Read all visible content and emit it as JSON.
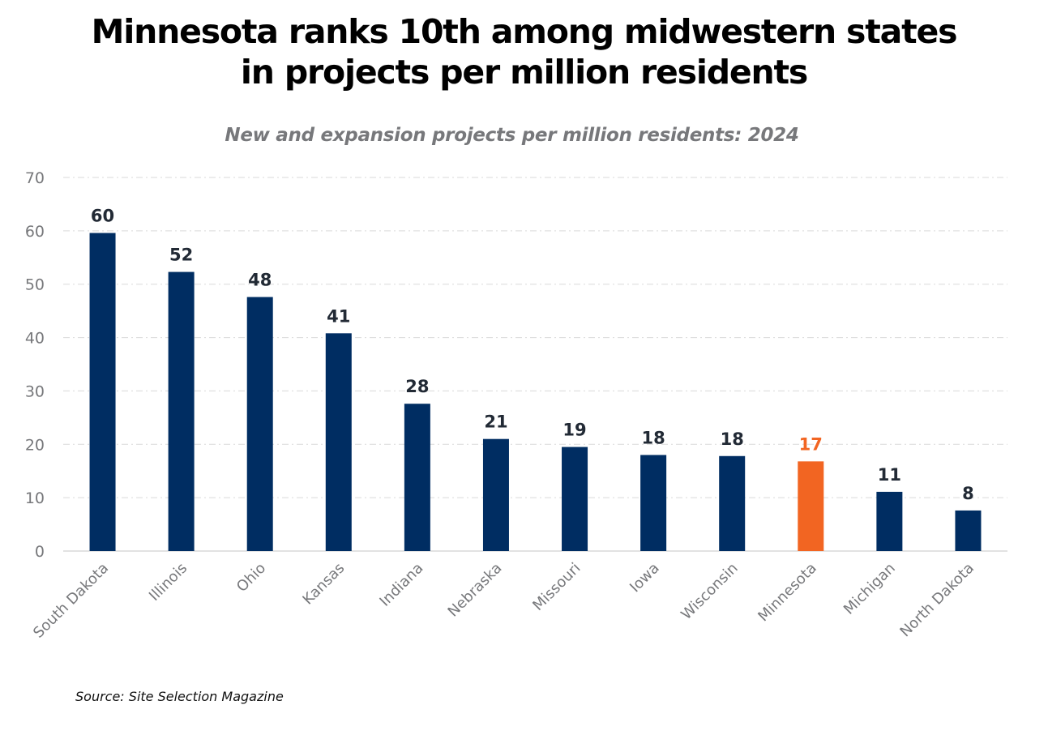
{
  "chart_data": {
    "type": "bar",
    "title": "Minnesota ranks 10th among midwestern states in projects per million residents",
    "title_lines": [
      "Minnesota ranks 10th among midwestern states",
      "in projects per million residents"
    ],
    "subtitle": "New and expansion projects per million residents: 2024",
    "xlabel": "",
    "ylabel": "",
    "ylim": [
      0,
      70
    ],
    "yticks": [
      0,
      10,
      20,
      30,
      40,
      50,
      60,
      70
    ],
    "grid": true,
    "legend": "none",
    "categories": [
      "South Dakota",
      "Illinois",
      "Ohio",
      "Kansas",
      "Indiana",
      "Nebraska",
      "Missouri",
      "Iowa",
      "Wisconsin",
      "Minnesota",
      "Michigan",
      "North Dakota"
    ],
    "values": [
      59.6,
      52.3,
      47.6,
      40.8,
      27.6,
      21.0,
      19.5,
      18.0,
      17.8,
      16.8,
      11.1,
      7.6
    ],
    "data_labels": [
      "60",
      "52",
      "48",
      "41",
      "28",
      "21",
      "19",
      "18",
      "18",
      "17",
      "11",
      "8"
    ],
    "highlight_category": "Minnesota",
    "colors": {
      "default": "#002d62",
      "highlight": "#f26522",
      "label_default": "#222a35",
      "label_highlight": "#f26522",
      "axis_text": "#77787b",
      "grid": "#d9d9d9"
    },
    "source": "Source: Site Selection Magazine"
  }
}
